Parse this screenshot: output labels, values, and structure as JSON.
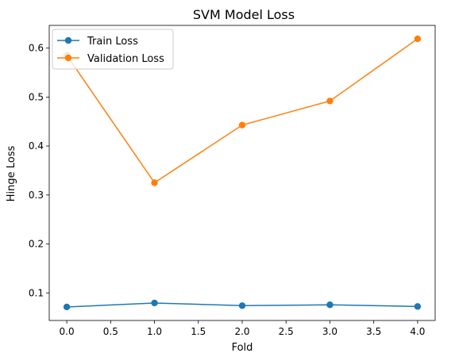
{
  "chart_data": {
    "type": "line",
    "title": "SVM Model Loss",
    "xlabel": "Fold",
    "ylabel": "Hinge Loss",
    "x": [
      0,
      1,
      2,
      3,
      4
    ],
    "xlim": [
      -0.2,
      4.2
    ],
    "ylim": [
      0.0437,
      0.6464
    ],
    "xticks": [
      0.0,
      0.5,
      1.0,
      1.5,
      2.0,
      2.5,
      3.0,
      3.5,
      4.0
    ],
    "xtick_labels": [
      "0.0",
      "0.5",
      "1.0",
      "1.5",
      "2.0",
      "2.5",
      "3.0",
      "3.5",
      "4.0"
    ],
    "yticks": [
      0.1,
      0.2,
      0.3,
      0.4,
      0.5,
      0.6
    ],
    "ytick_labels": [
      "0.1",
      "0.2",
      "0.3",
      "0.4",
      "0.5",
      "0.6"
    ],
    "grid": false,
    "legend_position": "top-left",
    "series": [
      {
        "name": "Train Loss",
        "color": "#1f77b4",
        "marker": "circle",
        "values": [
          0.0713,
          0.0794,
          0.074,
          0.0757,
          0.0723
        ]
      },
      {
        "name": "Validation Loss",
        "color": "#ff7f0e",
        "marker": "circle",
        "values": [
          0.5853,
          0.325,
          0.4428,
          0.492,
          0.619
        ]
      }
    ]
  }
}
